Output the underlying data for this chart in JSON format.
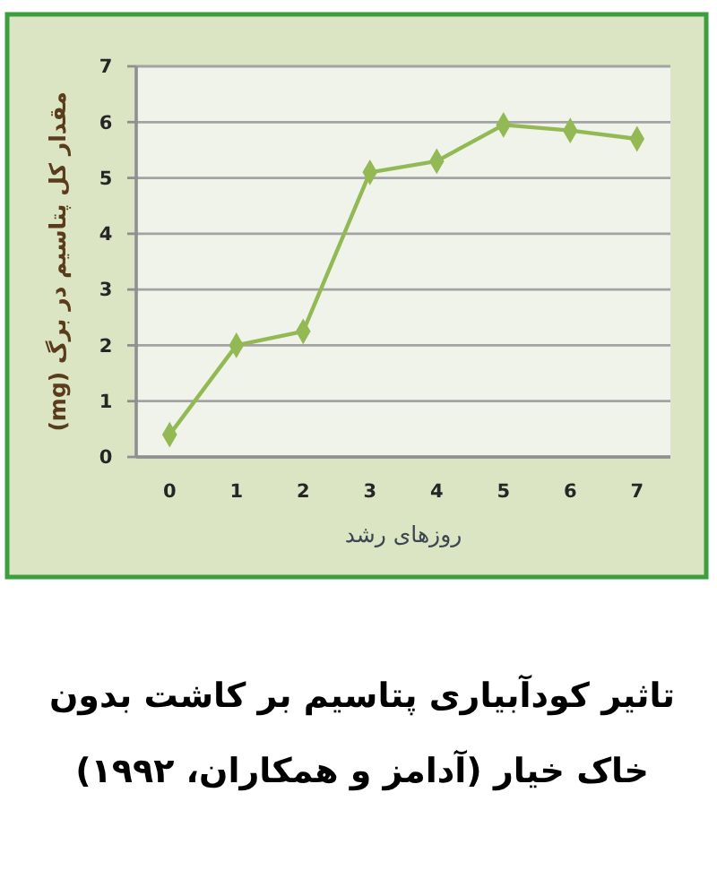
{
  "chart_data": {
    "type": "line",
    "title": "تاثیر کودآبیاری پتاسیم بر کاشت بدون خاک خیار (آدامز و همکاران، ۱۹۹۲)",
    "xlabel": "روزهای رشد",
    "ylabel": "مقدار کل پتاسیم در برگ (mg)",
    "categories": [
      "0",
      "1",
      "2",
      "3",
      "4",
      "5",
      "6",
      "7"
    ],
    "series": [
      {
        "color": "#93b954",
        "values": [
          0.4,
          2,
          2.25,
          5.1,
          5.3,
          5.95,
          5.85,
          5.7
        ]
      }
    ],
    "ylim": [
      0,
      7
    ],
    "yticks": [
      0,
      1,
      2,
      3,
      4,
      5,
      6,
      7
    ],
    "grid": "y",
    "marker": "diamond"
  }
}
